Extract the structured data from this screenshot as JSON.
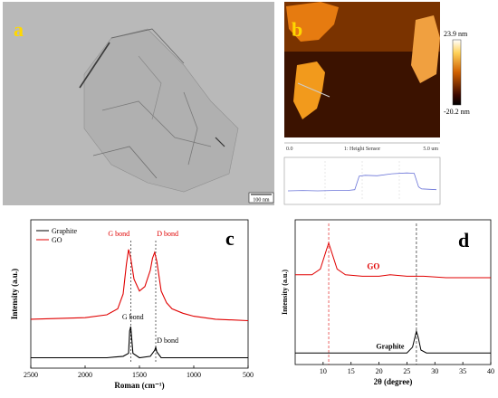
{
  "panel_a": {
    "letter": "a",
    "scale_bar": "100 nm"
  },
  "panel_b": {
    "letter": "b",
    "colorbar_max": "23.9 nm",
    "colorbar_min": "-20.2 nm",
    "axis_start": "0.0",
    "axis_end": "5.0 um",
    "sensor_label": "1: Height Sensor",
    "profile": {
      "type": "line",
      "x": [
        0,
        10,
        20,
        30,
        40,
        45,
        48,
        52,
        60,
        70,
        80,
        85,
        88,
        90,
        100
      ],
      "y": [
        0.25,
        0.26,
        0.25,
        0.26,
        0.26,
        0.28,
        0.62,
        0.64,
        0.63,
        0.68,
        0.7,
        0.69,
        0.35,
        0.3,
        0.28
      ]
    },
    "colors": {
      "bg": "#1a0700",
      "mid": "#c05a00",
      "high": "#ffb83a"
    }
  },
  "chart_data": [
    {
      "type": "line",
      "panel": "c",
      "letter": "c",
      "xlabel": "Roman (cm⁻¹)",
      "ylabel": "Intensity (a.u.)",
      "xlim": [
        2500,
        500
      ],
      "ylim": [
        0,
        1
      ],
      "x_ticks": [
        "2500",
        "2000",
        "1500",
        "1000",
        "500"
      ],
      "legend": [
        "Graphite",
        "GO"
      ],
      "series": [
        {
          "name": "Graphite",
          "color": "#000000",
          "x": [
            2500,
            2000,
            1800,
            1650,
            1600,
            1590,
            1580,
            1560,
            1500,
            1400,
            1360,
            1350,
            1340,
            1300,
            1000,
            500
          ],
          "y": [
            0.07,
            0.07,
            0.07,
            0.08,
            0.1,
            0.25,
            0.28,
            0.1,
            0.07,
            0.08,
            0.12,
            0.14,
            0.11,
            0.07,
            0.07,
            0.07
          ]
        },
        {
          "name": "GO",
          "color": "#e00000",
          "x": [
            2500,
            2000,
            1800,
            1700,
            1650,
            1620,
            1600,
            1580,
            1550,
            1500,
            1450,
            1400,
            1380,
            1360,
            1340,
            1320,
            1300,
            1250,
            1200,
            1100,
            1000,
            800,
            500
          ],
          "y": [
            0.33,
            0.34,
            0.36,
            0.4,
            0.5,
            0.7,
            0.8,
            0.74,
            0.6,
            0.52,
            0.55,
            0.66,
            0.74,
            0.78,
            0.72,
            0.62,
            0.52,
            0.44,
            0.4,
            0.37,
            0.35,
            0.33,
            0.32
          ]
        }
      ],
      "annotations": {
        "go_g": "G bond",
        "go_d": "D bond",
        "gr_g": "G bond",
        "gr_d": "D bond"
      }
    },
    {
      "type": "line",
      "panel": "d",
      "letter": "d",
      "xlabel": "2θ (degree)",
      "ylabel": "Intensity (a.u.)",
      "xlim": [
        5,
        40
      ],
      "ylim": [
        0,
        1
      ],
      "x_ticks": [
        "10",
        "15",
        "20",
        "25",
        "30",
        "35",
        "40"
      ],
      "series": [
        {
          "name": "GO",
          "color": "#e00000",
          "x": [
            5,
            8,
            9.5,
            10.5,
            11,
            11.5,
            12.5,
            14,
            17,
            20,
            22,
            25,
            28,
            32,
            36,
            40
          ],
          "y": [
            0.62,
            0.62,
            0.66,
            0.78,
            0.84,
            0.78,
            0.66,
            0.62,
            0.61,
            0.61,
            0.62,
            0.61,
            0.61,
            0.6,
            0.6,
            0.6
          ]
        },
        {
          "name": "Graphite",
          "color": "#000000",
          "x": [
            5,
            20,
            25,
            26,
            26.5,
            26.7,
            27,
            27.5,
            28.5,
            32,
            40
          ],
          "y": [
            0.08,
            0.08,
            0.08,
            0.12,
            0.2,
            0.23,
            0.19,
            0.1,
            0.08,
            0.08,
            0.08
          ]
        }
      ],
      "series_labels": {
        "go": "GO",
        "graphite": "Graphite"
      },
      "markers": [
        11,
        26.7
      ]
    }
  ]
}
